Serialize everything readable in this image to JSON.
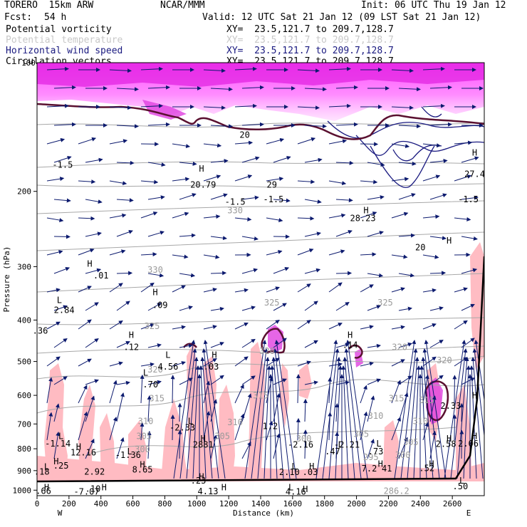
{
  "header": {
    "model": "TORERO  15km ARW",
    "org": "NCAR/MMM",
    "init": "Init: 06 UTC Thu 19 Jan 12",
    "fcst_label": "Fcst:",
    "fcst_value": "54 h",
    "valid": "Valid: 12 UTC Sat 21 Jan 12 (09 LST Sat 21 Jan 12)"
  },
  "fields": [
    {
      "name": "Potential vorticity",
      "xy": "XY=  23.5,121.7 to 209.7,128.7",
      "color": "#000000"
    },
    {
      "name": "Potential temperature",
      "xy": "XY=  23.5,121.7 to 209.7,128.7",
      "color": "#c8c8c8"
    },
    {
      "name": "Horizontal wind speed",
      "xy": "XY=  23.5,121.7 to 209.7,128.7",
      "color": "#1a1a80"
    },
    {
      "name": "Circulation vectors",
      "xy": "XY=  23.5,121.7 to 209.7,128.7",
      "color": "#000000"
    }
  ],
  "colors": {
    "wind_contour": "#1a1a80",
    "vectors": "#0c1a6e",
    "pv_positive": "#ffb0b8",
    "pv_high": "#e040e0",
    "pv_upper": "#ff44ff",
    "theta": "#9a9a9a",
    "pv_contour": "#5a1030",
    "terrain": "#000000"
  },
  "chart_data": {
    "type": "cross-section",
    "xlabel": "Distance (km)",
    "ylabel": "Pressure (hPa)",
    "xlim": [
      0,
      2800
    ],
    "ylim": [
      1030,
      100
    ],
    "y_scale": "log",
    "xticks": [
      0,
      200,
      400,
      600,
      800,
      1000,
      1200,
      1400,
      1600,
      1800,
      2000,
      2200,
      2400,
      2600
    ],
    "yticks": [
      200,
      300,
      400,
      500,
      600,
      700,
      800,
      900,
      1000
    ],
    "y_partial_top_label": "100",
    "end_labels": {
      "left": "W",
      "right": "E"
    },
    "theta_contours": [
      {
        "label": "305",
        "p": 790
      },
      {
        "label": "310",
        "p": 690
      },
      {
        "label": "315",
        "p": 630
      },
      {
        "label": "320",
        "p": 520
      },
      {
        "label": "325",
        "p": 420
      },
      {
        "label": "330",
        "p": 300
      },
      {
        "label": "300",
        "p": 860
      }
    ],
    "theta_labels": [
      {
        "t": "330",
        "x": 1240,
        "p": 225
      },
      {
        "t": "330",
        "x": 740,
        "p": 310
      },
      {
        "t": "325",
        "x": 1470,
        "p": 370
      },
      {
        "t": "325",
        "x": 2180,
        "p": 370
      },
      {
        "t": "325",
        "x": 720,
        "p": 420
      },
      {
        "t": "320",
        "x": 1440,
        "p": 480
      },
      {
        "t": "320",
        "x": 2270,
        "p": 470
      },
      {
        "t": "320",
        "x": 2550,
        "p": 505
      },
      {
        "t": "320",
        "x": 740,
        "p": 530
      },
      {
        "t": "315",
        "x": 750,
        "p": 620
      },
      {
        "t": "315",
        "x": 1400,
        "p": 610
      },
      {
        "t": "315",
        "x": 2250,
        "p": 620
      },
      {
        "t": "315",
        "x": 2440,
        "p": 625
      },
      {
        "t": "310",
        "x": 680,
        "p": 700
      },
      {
        "t": "310",
        "x": 1240,
        "p": 705
      },
      {
        "t": "310",
        "x": 2120,
        "p": 680
      },
      {
        "t": "310",
        "x": 2400,
        "p": 700
      },
      {
        "t": "305",
        "x": 670,
        "p": 760
      },
      {
        "t": "305",
        "x": 1160,
        "p": 760
      },
      {
        "t": "305",
        "x": 2030,
        "p": 750
      },
      {
        "t": "305",
        "x": 2340,
        "p": 785
      },
      {
        "t": "300",
        "x": 660,
        "p": 815
      },
      {
        "t": "300",
        "x": 1670,
        "p": 770
      },
      {
        "t": "300",
        "x": 2290,
        "p": 840
      },
      {
        "t": "295",
        "x": 2090,
        "p": 850
      },
      {
        "t": "286.2",
        "x": 2250,
        "p": 1020
      }
    ],
    "pv_labels": [
      {
        "t": "-1.5",
        "x": 160,
        "p": 176
      },
      {
        "t": "-1.5",
        "x": 1240,
        "p": 215
      },
      {
        "t": "-1.5",
        "x": 1480,
        "p": 212
      },
      {
        "t": "-1.5",
        "x": 2700,
        "p": 212
      },
      {
        "t": "20.79",
        "x": 1040,
        "p": 196
      },
      {
        "t": "29",
        "x": 1470,
        "p": 196
      },
      {
        "t": "28.23",
        "x": 2040,
        "p": 235
      },
      {
        "t": "20",
        "x": 2400,
        "p": 275
      },
      {
        "t": "27.4",
        "x": 2740,
        "p": 185
      },
      {
        "t": "20",
        "x": 1300,
        "p": 150
      },
      {
        "t": ".01",
        "x": 400,
        "p": 320
      },
      {
        "t": "2.84",
        "x": 170,
        "p": 385
      },
      {
        "t": ".36",
        "x": 20,
        "p": 430
      },
      {
        "t": ".09",
        "x": 770,
        "p": 375
      },
      {
        "t": ".12",
        "x": 590,
        "p": 470
      },
      {
        "t": "4.56",
        "x": 820,
        "p": 522
      },
      {
        "t": ".03",
        "x": 1090,
        "p": 522
      },
      {
        "t": ".70",
        "x": 710,
        "p": 575
      },
      {
        "t": ".14",
        "x": 1960,
        "p": 465
      },
      {
        "t": "2.33",
        "x": 2590,
        "p": 645
      },
      {
        "t": "-2.33",
        "x": 910,
        "p": 725
      },
      {
        "t": "1.2",
        "x": 1460,
        "p": 720
      },
      {
        "t": "-1.14",
        "x": 130,
        "p": 790
      },
      {
        "t": "12.16",
        "x": 290,
        "p": 830
      },
      {
        "t": "-1.36",
        "x": 570,
        "p": 840
      },
      {
        "t": ".25",
        "x": 150,
        "p": 890
      },
      {
        "t": "2.92",
        "x": 360,
        "p": 920
      },
      {
        "t": "8.65",
        "x": 660,
        "p": 910
      },
      {
        "t": "2881",
        "x": 1040,
        "p": 795
      },
      {
        "t": "-2.16",
        "x": 1650,
        "p": 795
      },
      {
        "t": "-2.21",
        "x": 1940,
        "p": 795
      },
      {
        "t": ".47",
        "x": 1850,
        "p": 825
      },
      {
        "t": ".73",
        "x": 2120,
        "p": 825
      },
      {
        "t": "2.58",
        "x": 2560,
        "p": 792
      },
      {
        "t": "2.06",
        "x": 2700,
        "p": 790
      },
      {
        "t": ".18",
        "x": 30,
        "p": 920
      },
      {
        "t": "2.10",
        "x": 1580,
        "p": 922
      },
      {
        "t": ".03",
        "x": 1710,
        "p": 922
      },
      {
        "t": "7.2",
        "x": 2080,
        "p": 904
      },
      {
        "t": "41",
        "x": 2190,
        "p": 904
      },
      {
        "t": ".52",
        "x": 2440,
        "p": 902
      },
      {
        "t": ".23",
        "x": 1010,
        "p": 965
      },
      {
        "t": ".50",
        "x": 2650,
        "p": 995
      },
      {
        "t": ".10",
        "x": 350,
        "p": 1008
      },
      {
        "t": ".66",
        "x": 40,
        "p": 1020
      },
      {
        "t": "-7.07",
        "x": 310,
        "p": 1025
      },
      {
        "t": "4.13",
        "x": 1070,
        "p": 1022
      },
      {
        "t": "4.16",
        "x": 1620,
        "p": 1025
      }
    ],
    "hl_markers": [
      {
        "t": "H",
        "x": 1030,
        "p": 180
      },
      {
        "t": "H",
        "x": 2060,
        "p": 225
      },
      {
        "t": "H",
        "x": 2580,
        "p": 265
      },
      {
        "t": "H",
        "x": 2740,
        "p": 165
      },
      {
        "t": "H",
        "x": 330,
        "p": 300
      },
      {
        "t": "L",
        "x": 140,
        "p": 365
      },
      {
        "t": "H",
        "x": 740,
        "p": 350
      },
      {
        "t": "H",
        "x": 590,
        "p": 440
      },
      {
        "t": "L",
        "x": 820,
        "p": 490
      },
      {
        "t": "H",
        "x": 1110,
        "p": 490
      },
      {
        "t": "L",
        "x": 680,
        "p": 540
      },
      {
        "t": "H",
        "x": 1960,
        "p": 440
      },
      {
        "t": "H",
        "x": 2740,
        "p": 610
      },
      {
        "t": "L",
        "x": 960,
        "p": 700
      },
      {
        "t": "L",
        "x": 150,
        "p": 760
      },
      {
        "t": "H",
        "x": 260,
        "p": 805
      },
      {
        "t": "H",
        "x": 1040,
        "p": 770
      },
      {
        "t": "L",
        "x": 580,
        "p": 825
      },
      {
        "t": "L",
        "x": 1900,
        "p": 795
      },
      {
        "t": "L",
        "x": 2140,
        "p": 790
      },
      {
        "t": "H",
        "x": 2580,
        "p": 770
      },
      {
        "t": "H",
        "x": 2740,
        "p": 760
      },
      {
        "t": "H",
        "x": 120,
        "p": 870
      },
      {
        "t": "L",
        "x": 60,
        "p": 895
      },
      {
        "t": "H",
        "x": 660,
        "p": 885
      },
      {
        "t": "L",
        "x": 1610,
        "p": 893
      },
      {
        "t": "H",
        "x": 1720,
        "p": 893
      },
      {
        "t": "H",
        "x": 2150,
        "p": 882
      },
      {
        "t": "H",
        "x": 2470,
        "p": 882
      },
      {
        "t": "H",
        "x": 1030,
        "p": 945
      },
      {
        "t": "L",
        "x": 2660,
        "p": 965
      },
      {
        "t": "H",
        "x": 60,
        "p": 1000
      },
      {
        "t": "H",
        "x": 420,
        "p": 1000
      },
      {
        "t": "H",
        "x": 1170,
        "p": 1000
      },
      {
        "t": "L",
        "x": 1590,
        "p": 1000
      },
      {
        "t": "H",
        "x": 1680,
        "p": 1010
      }
    ]
  }
}
